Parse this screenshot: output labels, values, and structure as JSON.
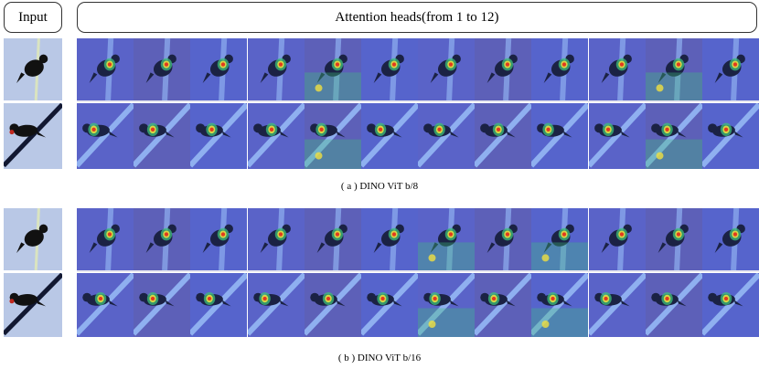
{
  "headers": {
    "input_label": "Input",
    "heads_label": "Attention heads(from 1 to 12)"
  },
  "panels": [
    {
      "caption": "( a ) DINO ViT b/8"
    },
    {
      "caption": "( b ) DINO ViT b/16"
    }
  ],
  "colors": {
    "input_bg": "#b9c8e6",
    "map_bg": "#5a63c8",
    "bird": "#1b2244",
    "hot_red": "#e23a1e",
    "hot_yellow": "#f0e040",
    "hot_green": "#3fc07a",
    "branch_light": "#8fb0f0",
    "branch_dark": "#121831"
  }
}
